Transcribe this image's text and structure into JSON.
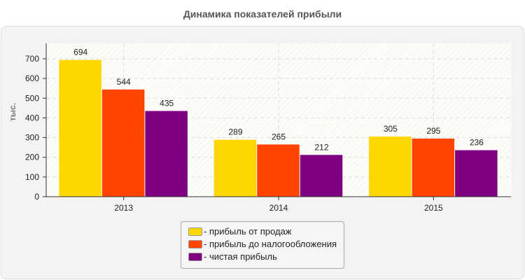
{
  "chart_data": {
    "type": "bar",
    "title": "Динамика показателей прибыли",
    "ylabel": "тыс.",
    "xlabel": "",
    "categories": [
      "2013",
      "2014",
      "2015"
    ],
    "series": [
      {
        "name": "- прибыль от продаж",
        "color": "#FFD700",
        "values": [
          694,
          289,
          305
        ]
      },
      {
        "name": "- прибыль до налогообложения",
        "color": "#FF4500",
        "values": [
          544,
          265,
          295
        ]
      },
      {
        "name": "- чистая прибыль",
        "color": "#800080",
        "values": [
          435,
          212,
          236
        ]
      }
    ],
    "ylim": [
      0,
      778
    ],
    "yticks": [
      0,
      100,
      200,
      300,
      400,
      500,
      600,
      700
    ],
    "grid": true,
    "legend": "bottom"
  }
}
